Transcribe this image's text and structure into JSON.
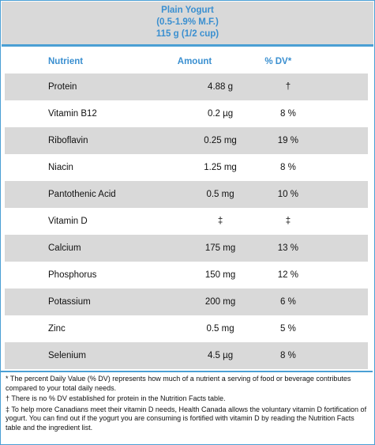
{
  "title": {
    "line1": "Plain Yogurt",
    "line2": "(0.5-1.9% M.F.)",
    "line3": "115 g (1/2 cup)"
  },
  "headers": {
    "nutrient": "Nutrient",
    "amount": "Amount",
    "dv": "% DV*"
  },
  "rows": [
    {
      "nutrient": "Protein",
      "amount": "4.88 g",
      "dv": "†"
    },
    {
      "nutrient": "Vitamin B12",
      "amount": "0.2 µg",
      "dv": "8 %"
    },
    {
      "nutrient": "Riboflavin",
      "amount": "0.25 mg",
      "dv": "19 %"
    },
    {
      "nutrient": "Niacin",
      "amount": "1.25 mg",
      "dv": "8 %"
    },
    {
      "nutrient": "Pantothenic Acid",
      "amount": "0.5 mg",
      "dv": "10 %"
    },
    {
      "nutrient": "Vitamin D",
      "amount": "‡",
      "dv": "‡"
    },
    {
      "nutrient": "Calcium",
      "amount": "175 mg",
      "dv": "13 %"
    },
    {
      "nutrient": "Phosphorus",
      "amount": "150 mg",
      "dv": "12 %"
    },
    {
      "nutrient": "Potassium",
      "amount": "200 mg",
      "dv": "6 %"
    },
    {
      "nutrient": "Zinc",
      "amount": "0.5 mg",
      "dv": "5 %"
    },
    {
      "nutrient": "Selenium",
      "amount": "4.5 µg",
      "dv": "8 %"
    }
  ],
  "footnotes": {
    "note1": "*  The percent Daily Value (% DV) represents how much of a nutrient a serving of food or beverage contributes compared to your total daily needs.",
    "note2": "†  There is no % DV established for protein in the Nutrition Facts table.",
    "note3": "‡ To help more Canadians meet their vitamin D needs, Health Canada allows the voluntary vitamin D fortification of yogurt. You can find out if the yogurt you are consuming is fortified with vitamin D by reading the Nutrition Facts table and the ingredient list."
  },
  "colors": {
    "accent": "#3a8fd0",
    "border": "#4a9fd4",
    "shade": "#d9d9d9"
  }
}
